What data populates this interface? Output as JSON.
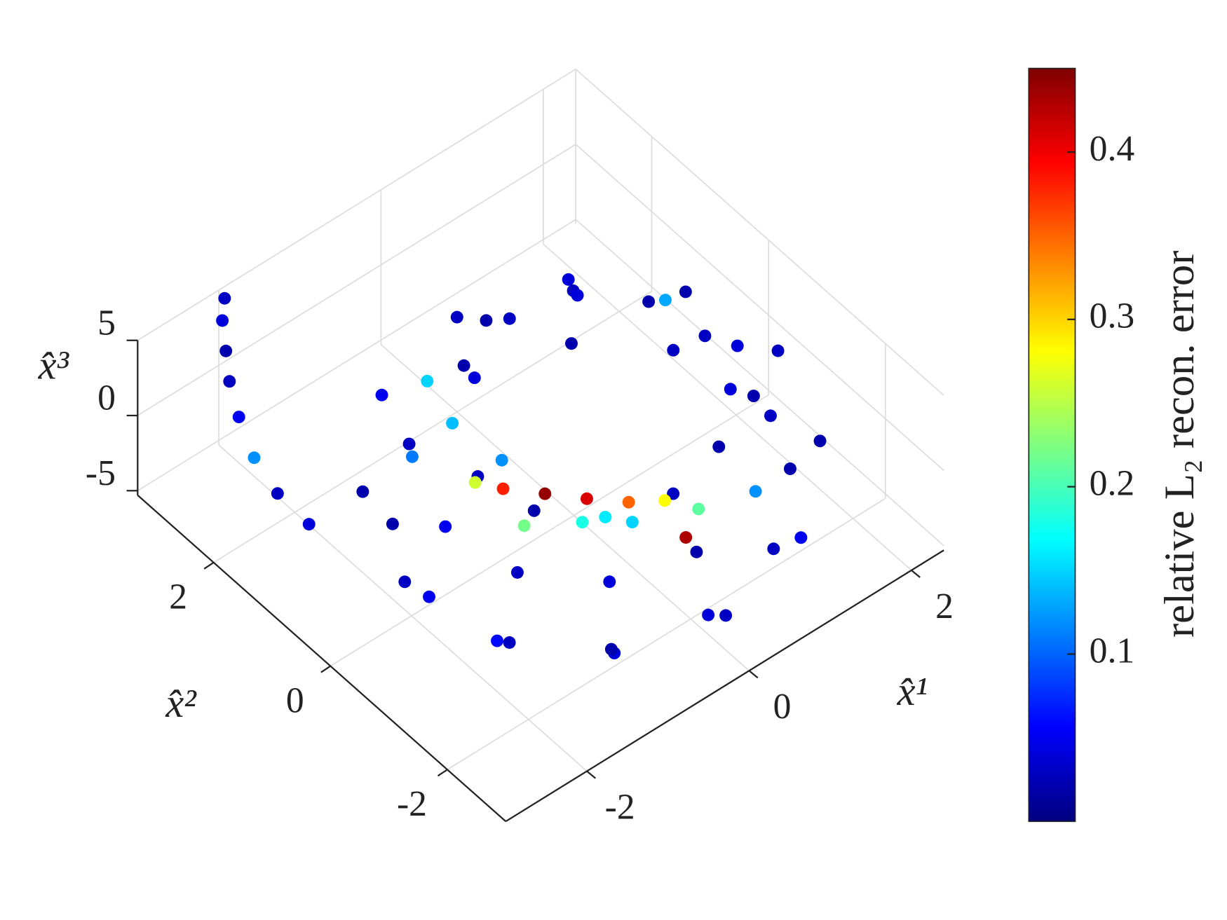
{
  "chart_data": {
    "type": "scatter3d",
    "xlabel": "x̂¹",
    "ylabel": "x̂²",
    "zlabel": "x̂³",
    "xlim": [
      -3,
      2.4
    ],
    "ylim": [
      -3,
      3.3
    ],
    "zlim": [
      -5.3,
      5
    ],
    "xticks": [
      -2,
      0,
      2
    ],
    "yticks": [
      -2,
      0,
      2
    ],
    "zticks": [
      -5,
      0,
      5
    ],
    "grid": true,
    "colormap": "jet",
    "colorbar": {
      "label": "relative L₂ recon. error",
      "clim": [
        0,
        0.45
      ],
      "ticks": [
        0.1,
        0.2,
        0.3,
        0.4
      ]
    },
    "x": [
      2.3,
      1.99,
      1.15,
      0,
      -1.15,
      -1.99,
      -2.3,
      -1.99,
      -1.15,
      0,
      1.15,
      1.99,
      1.8,
      1.56,
      0.9,
      0,
      -0.9,
      -1.56,
      -1.8,
      -1.56,
      -0.9,
      0,
      0.9,
      1.56,
      2,
      1.73,
      1,
      0,
      -1,
      -1.73,
      -2,
      -1.73,
      -1,
      0,
      1,
      1.73,
      1.4,
      1.21,
      0.7,
      0,
      -0.7,
      -1.21,
      -1.4,
      -1.21,
      -0.7,
      0,
      0.7,
      1.21,
      -2.4,
      -2.5,
      -2.5,
      -2.4,
      -2.3,
      -2.2,
      -2.1,
      -2.0,
      -0.8,
      -0.5,
      -0.2,
      0.1,
      0.4,
      -0.9,
      -0.4,
      0.0,
      -1.0,
      0.6,
      0.3,
      -0.6
    ],
    "y": [
      -0.3,
      0.85,
      1.69,
      2.0,
      1.69,
      0.85,
      -0.3,
      -1.45,
      -2.29,
      -2.6,
      -2.29,
      -1.45,
      -0.3,
      0.6,
      1.26,
      1.5,
      1.26,
      0.6,
      -0.3,
      -1.2,
      -1.86,
      -2.1,
      -1.86,
      -1.2,
      -0.3,
      0.7,
      1.43,
      1.7,
      1.43,
      0.7,
      -0.3,
      -1.3,
      -2.03,
      -2.3,
      -2.03,
      -1.3,
      -0.3,
      0.4,
      0.91,
      1.1,
      0.91,
      0.4,
      -0.3,
      -1.0,
      -1.51,
      -1.7,
      -1.51,
      -1.0,
      1.2,
      1.6,
      2.0,
      2.4,
      2.7,
      2.9,
      3.1,
      3.2,
      0.1,
      -0.2,
      -0.5,
      -0.8,
      -1.0,
      -0.4,
      -0.7,
      -1.0,
      0.3,
      -1.3,
      -1.5,
      0.4
    ],
    "z": [
      -1,
      0,
      0.73,
      1,
      0.73,
      0,
      -1,
      -2,
      -2.73,
      -3,
      -2.73,
      -2,
      1,
      1.75,
      2.3,
      2.5,
      2.3,
      1.75,
      1,
      0.25,
      -0.3,
      -0.5,
      -0.3,
      0.25,
      -3,
      -2.5,
      -2.13,
      -2,
      -2.13,
      -2.5,
      -3,
      -3.5,
      -3.87,
      -4,
      -3.87,
      -3.5,
      3,
      3.5,
      3.87,
      4,
      3.87,
      3.5,
      3,
      2.5,
      2.13,
      2,
      2.13,
      2.5,
      -2,
      -1,
      0,
      1,
      2,
      3,
      4,
      4.8,
      -1.2,
      -1.5,
      -1.8,
      -2.0,
      -2.2,
      -1.6,
      -2.0,
      -2.3,
      -0.8,
      -2.4,
      -2.6,
      -1.0
    ],
    "c": [
      0.03,
      0.02,
      0.04,
      0.03,
      0.05,
      0.02,
      0.03,
      0.06,
      0.04,
      0.03,
      0.05,
      0.02,
      0.04,
      0.13,
      0.03,
      0.02,
      0.15,
      0.11,
      0.05,
      0.03,
      0.04,
      0.02,
      0.12,
      0.03,
      0.02,
      0.03,
      0.02,
      0.04,
      0.03,
      0.02,
      0.05,
      0.03,
      0.02,
      0.04,
      0.03,
      0.02,
      0.03,
      0.02,
      0.04,
      0.03,
      0.02,
      0.14,
      0.03,
      0.02,
      0.16,
      0.03,
      0.02,
      0.04,
      0.04,
      0.03,
      0.12,
      0.05,
      0.03,
      0.02,
      0.04,
      0.03,
      0.38,
      0.44,
      0.41,
      0.35,
      0.28,
      0.22,
      0.18,
      0.15,
      0.26,
      0.21,
      0.43,
      0.12
    ]
  }
}
